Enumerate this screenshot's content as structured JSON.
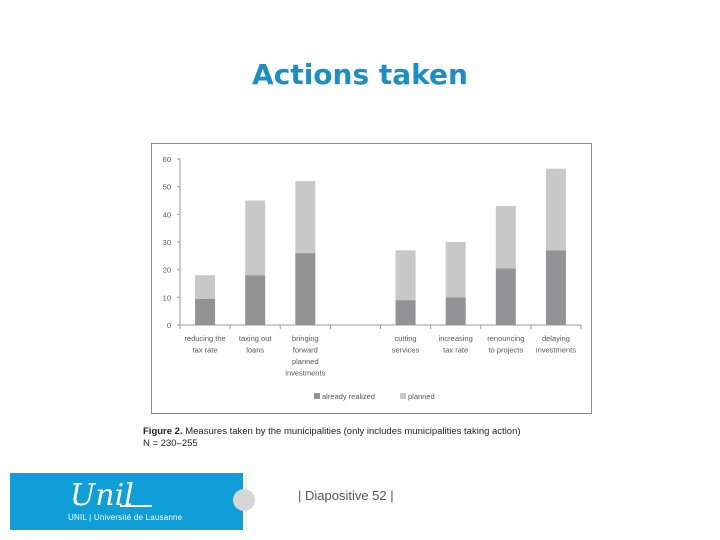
{
  "slide": {
    "title": "Actions taken",
    "footer_text": "| Diapositive 52 |",
    "logo_word": "Unil",
    "logo_subtitle": "UNIL | Université de Lausanne"
  },
  "caption": {
    "label": "Figure  2.",
    "text": "Measures taken by the municipalities (only includes municipalities taking action)",
    "n": "N = 230–255"
  },
  "colors": {
    "title": "#1b8fc4",
    "realized": "#939396",
    "planned": "#c8c8c9",
    "logo_block": "#0f9ed8"
  },
  "chart_data": {
    "type": "bar",
    "stacked": true,
    "categories": [
      [
        "reducing the",
        "tax rate"
      ],
      [
        "taxing out",
        "loans"
      ],
      [
        "bringing",
        "forward",
        "planned",
        "investments"
      ],
      [],
      [
        "cutting",
        "services"
      ],
      [
        "increasing",
        "tax rate"
      ],
      [
        "renouncing",
        "to projects"
      ],
      [
        "delaying",
        "investments"
      ]
    ],
    "series": [
      {
        "name": "already realized",
        "values": [
          9.5,
          18,
          26,
          null,
          9,
          10,
          20.5,
          27
        ]
      },
      {
        "name": "planned",
        "values": [
          8.5,
          27,
          26,
          null,
          18,
          20,
          22.5,
          29.5
        ]
      }
    ],
    "ylim": [
      0,
      60
    ],
    "yticks": [
      0,
      10,
      20,
      30,
      40,
      50,
      60
    ],
    "grid": false,
    "legend_position": "bottom"
  }
}
